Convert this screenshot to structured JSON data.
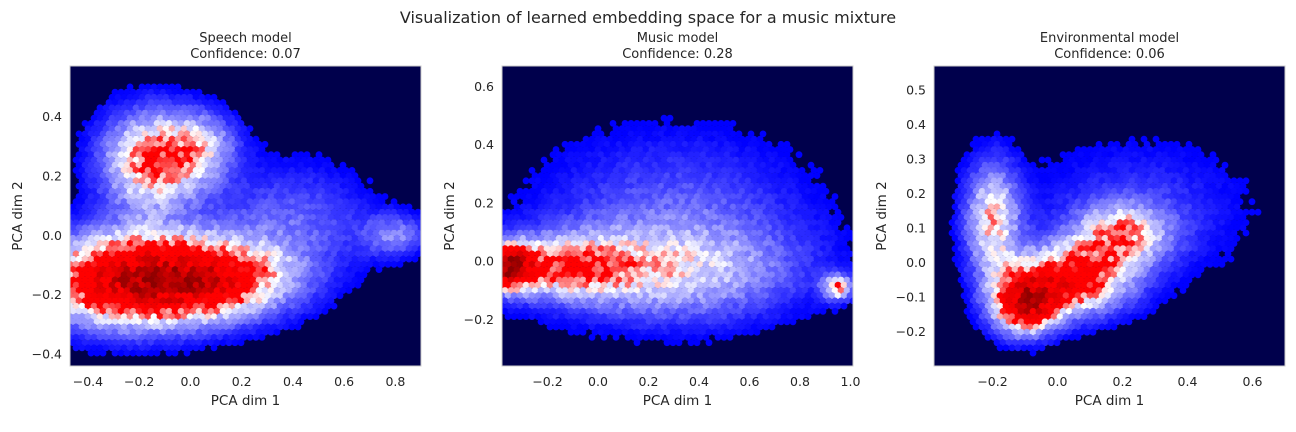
{
  "figure": {
    "suptitle": "Visualization of learned embedding space for a music mixture"
  },
  "colors": {
    "background": "#00004c",
    "hot": "#ff0000",
    "mid": "#ffffff",
    "cold": "#0000ff",
    "text": "#262626"
  },
  "chart_data": [
    {
      "type": "heatmap",
      "title": "Speech model",
      "subtitle": "Confidence: 0.07",
      "xlabel": "PCA dim 1",
      "ylabel": "PCA dim 2",
      "xlim": [
        -0.47,
        0.9
      ],
      "ylim": [
        -0.44,
        0.57
      ],
      "xticks": [
        -0.4,
        -0.2,
        0.0,
        0.2,
        0.4,
        0.6,
        0.8
      ],
      "xtick_labels": [
        "−0.4",
        "−0.2",
        "0.0",
        "0.2",
        "0.4",
        "0.6",
        "0.8"
      ],
      "yticks": [
        -0.4,
        -0.2,
        0.0,
        0.2,
        0.4
      ],
      "ytick_labels": [
        "−0.4",
        "−0.2",
        "0.0",
        "0.2",
        "0.4"
      ],
      "blobs": [
        {
          "x": -0.25,
          "y": -0.15,
          "sx": 0.25,
          "sy": 0.11,
          "w": 1.0
        },
        {
          "x": 0.1,
          "y": -0.15,
          "sx": 0.22,
          "sy": 0.09,
          "w": 0.7
        },
        {
          "x": -0.15,
          "y": 0.25,
          "sx": 0.14,
          "sy": 0.12,
          "w": 0.7
        },
        {
          "x": 0.05,
          "y": 0.3,
          "sx": 0.1,
          "sy": 0.08,
          "w": 0.35
        },
        {
          "x": 0.4,
          "y": 0.05,
          "sx": 0.22,
          "sy": 0.14,
          "w": 0.25
        },
        {
          "x": 0.8,
          "y": 0.0,
          "sx": 0.09,
          "sy": 0.05,
          "w": 0.3
        }
      ]
    },
    {
      "type": "heatmap",
      "title": "Music model",
      "subtitle": "Confidence: 0.28",
      "xlabel": "PCA dim 1",
      "ylabel": "PCA dim 2",
      "xlim": [
        -0.38,
        1.01
      ],
      "ylim": [
        -0.36,
        0.67
      ],
      "xticks": [
        -0.2,
        0.0,
        0.2,
        0.4,
        0.6,
        0.8,
        1.0
      ],
      "xtick_labels": [
        "−0.2",
        "0.0",
        "0.2",
        "0.4",
        "0.6",
        "0.8",
        "1.0"
      ],
      "yticks": [
        -0.2,
        0.0,
        0.2,
        0.4,
        0.6
      ],
      "ytick_labels": [
        "−0.2",
        "0.0",
        "0.2",
        "0.4",
        "0.6"
      ],
      "blobs": [
        {
          "x": -0.35,
          "y": -0.02,
          "sx": 0.06,
          "sy": 0.05,
          "w": 1.0
        },
        {
          "x": -0.15,
          "y": -0.02,
          "sx": 0.2,
          "sy": 0.07,
          "w": 0.55
        },
        {
          "x": 0.3,
          "y": -0.04,
          "sx": 0.35,
          "sy": 0.12,
          "w": 0.4
        },
        {
          "x": 0.3,
          "y": 0.18,
          "sx": 0.4,
          "sy": 0.2,
          "w": 0.22
        },
        {
          "x": 0.95,
          "y": -0.09,
          "sx": 0.04,
          "sy": 0.03,
          "w": 0.6
        }
      ]
    },
    {
      "type": "heatmap",
      "title": "Environmental model",
      "subtitle": "Confidence: 0.06",
      "xlabel": "PCA dim 1",
      "ylabel": "PCA dim 2",
      "xlim": [
        -0.38,
        0.7
      ],
      "ylim": [
        -0.3,
        0.57
      ],
      "xticks": [
        -0.2,
        0.0,
        0.2,
        0.4,
        0.6
      ],
      "xtick_labels": [
        "−0.2",
        "0.0",
        "0.2",
        "0.4",
        "0.6"
      ],
      "yticks": [
        -0.2,
        -0.1,
        0.0,
        0.1,
        0.2,
        0.3,
        0.4,
        0.5
      ],
      "ytick_labels": [
        "−0.2",
        "−0.1",
        "0.0",
        "0.1",
        "0.2",
        "0.3",
        "0.4",
        "0.5"
      ],
      "blobs": [
        {
          "x": -0.1,
          "y": -0.12,
          "sx": 0.07,
          "sy": 0.06,
          "w": 1.0
        },
        {
          "x": 0.05,
          "y": -0.05,
          "sx": 0.12,
          "sy": 0.07,
          "w": 0.8
        },
        {
          "x": -0.2,
          "y": 0.12,
          "sx": 0.06,
          "sy": 0.12,
          "w": 0.55
        },
        {
          "x": 0.2,
          "y": 0.08,
          "sx": 0.1,
          "sy": 0.06,
          "w": 0.5
        },
        {
          "x": 0.25,
          "y": 0.15,
          "sx": 0.25,
          "sy": 0.15,
          "w": 0.18
        }
      ]
    }
  ]
}
